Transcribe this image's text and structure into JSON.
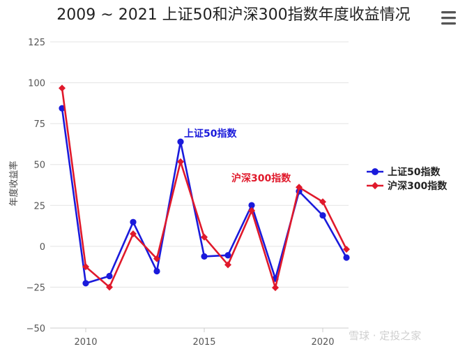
{
  "chart_data": {
    "type": "line",
    "title": "2009 ~ 2021 上证50和沪深300指数年度收益情况",
    "xlabel": "",
    "ylabel": "年度收益率",
    "x": [
      2009,
      2010,
      2011,
      2012,
      2013,
      2014,
      2015,
      2016,
      2017,
      2018,
      2019,
      2020,
      2021
    ],
    "x_ticks": [
      "2010",
      "2015",
      "2020"
    ],
    "y_ticks": [
      "125",
      "100",
      "75",
      "50",
      "25",
      "0",
      "−25",
      "−50"
    ],
    "ylim": [
      -50,
      125
    ],
    "xlim": [
      2009,
      2021
    ],
    "grid": "horizontal",
    "legend_position": "right",
    "series": [
      {
        "name": "上证50指数",
        "color": "#1a1adb",
        "marker": "circle",
        "values": [
          84.4,
          -22.6,
          -18.2,
          14.8,
          -15.2,
          63.9,
          -6.2,
          -5.5,
          25.1,
          -19.8,
          33.6,
          18.9,
          -6.9
        ]
      },
      {
        "name": "沪深300指数",
        "color": "#e0192b",
        "marker": "diamond",
        "values": [
          96.7,
          -12.5,
          -25.0,
          7.6,
          -7.6,
          51.7,
          5.6,
          -11.3,
          21.8,
          -25.3,
          36.1,
          27.2,
          -1.8
        ]
      }
    ],
    "annotations": [
      {
        "text": "上证50指数",
        "color": "#1a1adb"
      },
      {
        "text": "沪深300指数",
        "color": "#e0192b"
      }
    ]
  },
  "ui": {
    "menu_icon": "hamburger-menu-icon",
    "watermark": "雪球 · 定投之家"
  }
}
